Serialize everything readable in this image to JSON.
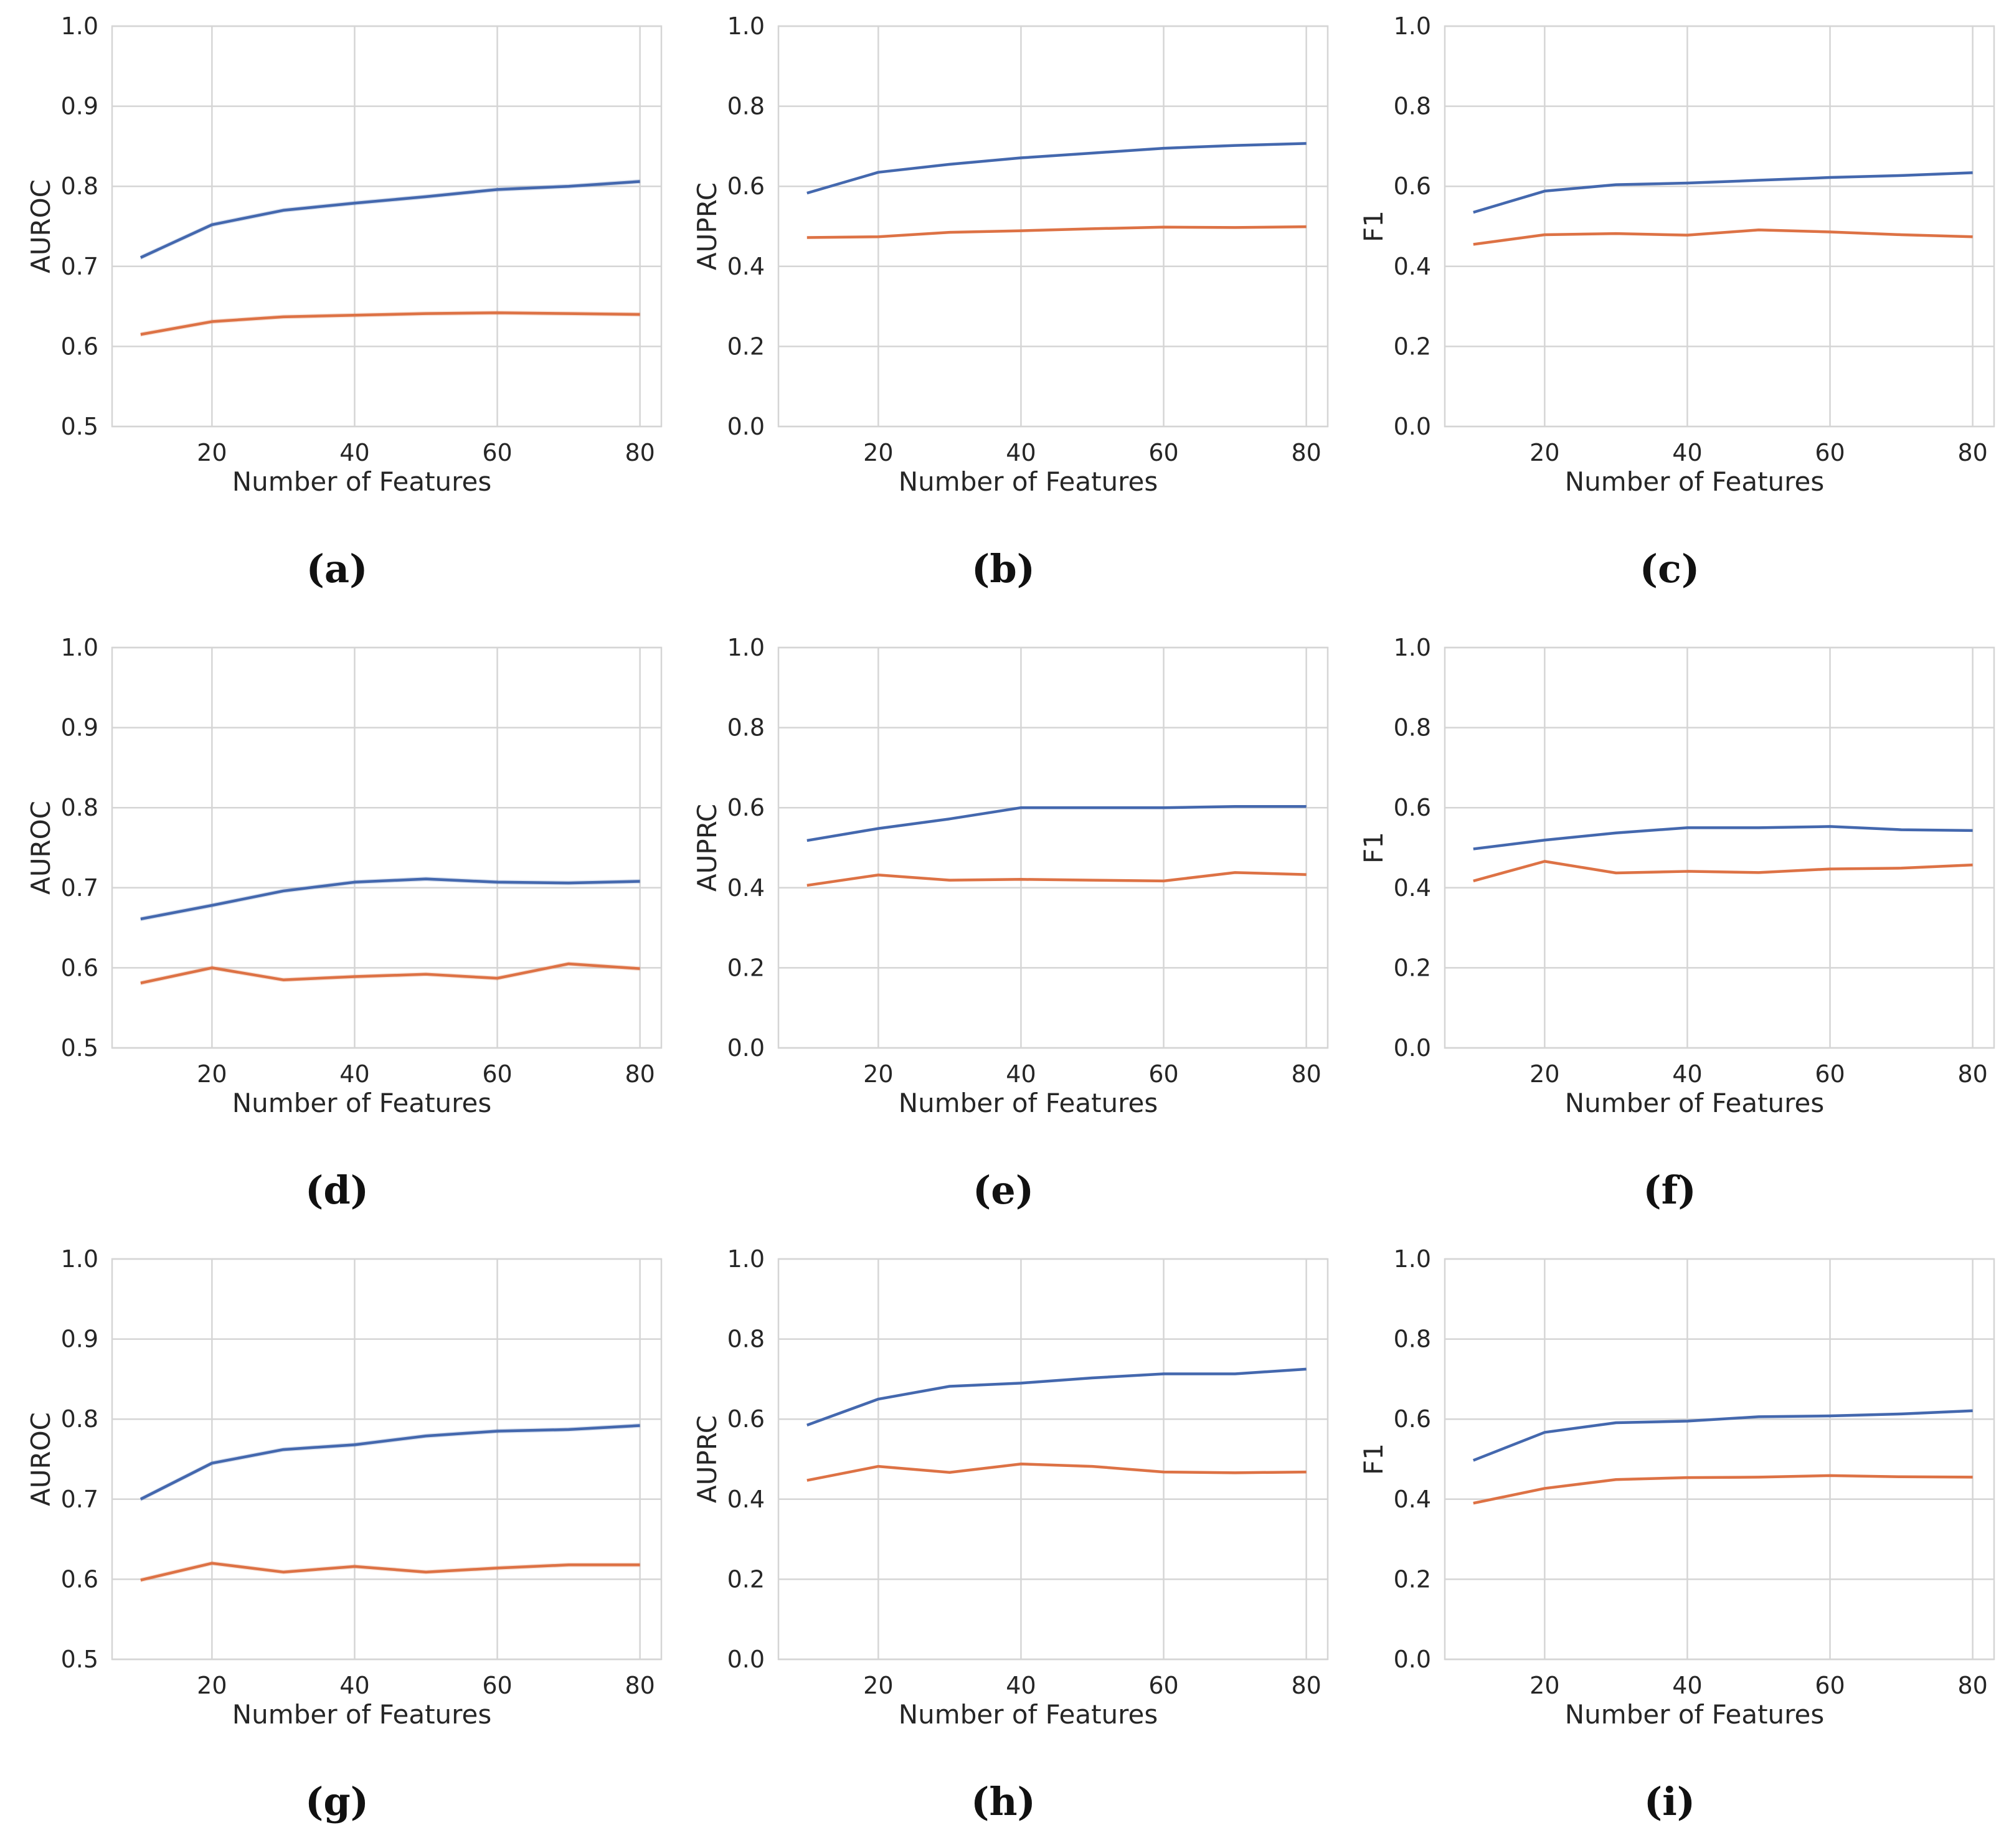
{
  "colors": {
    "series_a": "#4468AE",
    "series_b": "#DD7245",
    "grid": "#D5D5D5",
    "axis_text": "#262626"
  },
  "chart_data": [
    {
      "panel_label": "(a)",
      "type": "line",
      "xlabel": "Number of Features",
      "ylabel": "AUROC",
      "xticks": [
        20,
        40,
        60,
        80
      ],
      "xlim": [
        6,
        83
      ],
      "ylim": [
        0.5,
        1.0
      ],
      "yticks": [
        "0.5",
        "0.6",
        "0.7",
        "0.8",
        "0.9",
        "1.0"
      ],
      "ytick_values": [
        0.5,
        0.6,
        0.7,
        0.8,
        0.9,
        1.0
      ],
      "x": [
        10,
        20,
        30,
        40,
        50,
        60,
        70,
        80
      ],
      "series": [
        {
          "name": "series_a",
          "values": [
            0.711,
            0.752,
            0.77,
            0.779,
            0.787,
            0.796,
            0.8,
            0.806
          ]
        },
        {
          "name": "series_b",
          "values": [
            0.615,
            0.631,
            0.637,
            0.639,
            0.641,
            0.642,
            0.641,
            0.64
          ]
        }
      ]
    },
    {
      "panel_label": "(b)",
      "type": "line",
      "xlabel": "Number of Features",
      "ylabel": "AUPRC",
      "xticks": [
        20,
        40,
        60,
        80
      ],
      "xlim": [
        6,
        83
      ],
      "ylim": [
        0.0,
        1.0
      ],
      "yticks": [
        "0.0",
        "0.2",
        "0.4",
        "0.6",
        "0.8",
        "1.0"
      ],
      "ytick_values": [
        0.0,
        0.2,
        0.4,
        0.6,
        0.8,
        1.0
      ],
      "x": [
        10,
        20,
        30,
        40,
        50,
        60,
        70,
        80
      ],
      "series": [
        {
          "name": "series_a",
          "values": [
            0.583,
            0.635,
            0.655,
            0.671,
            0.683,
            0.695,
            0.702,
            0.707
          ]
        },
        {
          "name": "series_b",
          "values": [
            0.472,
            0.474,
            0.485,
            0.489,
            0.494,
            0.498,
            0.497,
            0.499
          ]
        }
      ]
    },
    {
      "panel_label": "(c)",
      "type": "line",
      "xlabel": "Number of Features",
      "ylabel": "F1",
      "xticks": [
        20,
        40,
        60,
        80
      ],
      "xlim": [
        6,
        83
      ],
      "ylim": [
        0.0,
        1.0
      ],
      "yticks": [
        "0.0",
        "0.2",
        "0.4",
        "0.6",
        "0.8",
        "1.0"
      ],
      "ytick_values": [
        0.0,
        0.2,
        0.4,
        0.6,
        0.8,
        1.0
      ],
      "x": [
        10,
        20,
        30,
        40,
        50,
        60,
        70,
        80
      ],
      "series": [
        {
          "name": "series_a",
          "values": [
            0.535,
            0.588,
            0.604,
            0.608,
            0.615,
            0.622,
            0.627,
            0.634
          ]
        },
        {
          "name": "series_b",
          "values": [
            0.455,
            0.479,
            0.482,
            0.478,
            0.491,
            0.486,
            0.479,
            0.474
          ]
        }
      ]
    },
    {
      "panel_label": "(d)",
      "type": "line",
      "xlabel": "Number of Features",
      "ylabel": "AUROC",
      "xticks": [
        20,
        40,
        60,
        80
      ],
      "xlim": [
        6,
        83
      ],
      "ylim": [
        0.5,
        1.0
      ],
      "yticks": [
        "0.5",
        "0.6",
        "0.7",
        "0.8",
        "0.9",
        "1.0"
      ],
      "ytick_values": [
        0.5,
        0.6,
        0.7,
        0.8,
        0.9,
        1.0
      ],
      "x": [
        10,
        20,
        30,
        40,
        50,
        60,
        70,
        80
      ],
      "series": [
        {
          "name": "series_a",
          "values": [
            0.661,
            0.678,
            0.696,
            0.707,
            0.711,
            0.707,
            0.706,
            0.708
          ]
        },
        {
          "name": "series_b",
          "values": [
            0.581,
            0.6,
            0.585,
            0.589,
            0.592,
            0.587,
            0.605,
            0.599
          ]
        }
      ]
    },
    {
      "panel_label": "(e)",
      "type": "line",
      "xlabel": "Number of Features",
      "ylabel": "AUPRC",
      "xticks": [
        20,
        40,
        60,
        80
      ],
      "xlim": [
        6,
        83
      ],
      "ylim": [
        0.0,
        1.0
      ],
      "yticks": [
        "0.0",
        "0.2",
        "0.4",
        "0.6",
        "0.8",
        "1.0"
      ],
      "ytick_values": [
        0.0,
        0.2,
        0.4,
        0.6,
        0.8,
        1.0
      ],
      "x": [
        10,
        20,
        30,
        40,
        50,
        60,
        70,
        80
      ],
      "series": [
        {
          "name": "series_a",
          "values": [
            0.518,
            0.548,
            0.572,
            0.6,
            0.6,
            0.6,
            0.603,
            0.603
          ]
        },
        {
          "name": "series_b",
          "values": [
            0.406,
            0.432,
            0.419,
            0.421,
            0.419,
            0.417,
            0.438,
            0.433
          ]
        }
      ]
    },
    {
      "panel_label": "(f)",
      "type": "line",
      "xlabel": "Number of Features",
      "ylabel": "F1",
      "xticks": [
        20,
        40,
        60,
        80
      ],
      "xlim": [
        6,
        83
      ],
      "ylim": [
        0.0,
        1.0
      ],
      "yticks": [
        "0.0",
        "0.2",
        "0.4",
        "0.6",
        "0.8",
        "1.0"
      ],
      "ytick_values": [
        0.0,
        0.2,
        0.4,
        0.6,
        0.8,
        1.0
      ],
      "x": [
        10,
        20,
        30,
        40,
        50,
        60,
        70,
        80
      ],
      "series": [
        {
          "name": "series_a",
          "values": [
            0.497,
            0.519,
            0.537,
            0.55,
            0.55,
            0.553,
            0.545,
            0.543
          ]
        },
        {
          "name": "series_b",
          "values": [
            0.417,
            0.466,
            0.437,
            0.441,
            0.438,
            0.447,
            0.449,
            0.457
          ]
        }
      ]
    },
    {
      "panel_label": "(g)",
      "type": "line",
      "xlabel": "Number of Features",
      "ylabel": "AUROC",
      "xticks": [
        20,
        40,
        60,
        80
      ],
      "xlim": [
        6,
        83
      ],
      "ylim": [
        0.5,
        1.0
      ],
      "yticks": [
        "0.5",
        "0.6",
        "0.7",
        "0.8",
        "0.9",
        "1.0"
      ],
      "ytick_values": [
        0.5,
        0.6,
        0.7,
        0.8,
        0.9,
        1.0
      ],
      "x": [
        10,
        20,
        30,
        40,
        50,
        60,
        70,
        80
      ],
      "series": [
        {
          "name": "series_a",
          "values": [
            0.7,
            0.745,
            0.762,
            0.768,
            0.779,
            0.785,
            0.787,
            0.792
          ]
        },
        {
          "name": "series_b",
          "values": [
            0.599,
            0.62,
            0.609,
            0.616,
            0.609,
            0.614,
            0.618,
            0.618
          ]
        }
      ]
    },
    {
      "panel_label": "(h)",
      "type": "line",
      "xlabel": "Number of Features",
      "ylabel": "AUPRC",
      "xticks": [
        20,
        40,
        60,
        80
      ],
      "xlim": [
        6,
        83
      ],
      "ylim": [
        0.0,
        1.0
      ],
      "yticks": [
        "0.0",
        "0.2",
        "0.4",
        "0.6",
        "0.8",
        "1.0"
      ],
      "ytick_values": [
        0.0,
        0.2,
        0.4,
        0.6,
        0.8,
        1.0
      ],
      "x": [
        10,
        20,
        30,
        40,
        50,
        60,
        70,
        80
      ],
      "series": [
        {
          "name": "series_a",
          "values": [
            0.585,
            0.65,
            0.682,
            0.69,
            0.703,
            0.713,
            0.713,
            0.725
          ]
        },
        {
          "name": "series_b",
          "values": [
            0.447,
            0.482,
            0.467,
            0.488,
            0.482,
            0.468,
            0.466,
            0.468
          ]
        }
      ]
    },
    {
      "panel_label": "(i)",
      "type": "line",
      "xlabel": "Number of Features",
      "ylabel": "F1",
      "xticks": [
        20,
        40,
        60,
        80
      ],
      "xlim": [
        6,
        83
      ],
      "ylim": [
        0.0,
        1.0
      ],
      "yticks": [
        "0.0",
        "0.2",
        "0.4",
        "0.6",
        "0.8",
        "1.0"
      ],
      "ytick_values": [
        0.0,
        0.2,
        0.4,
        0.6,
        0.8,
        1.0
      ],
      "x": [
        10,
        20,
        30,
        40,
        50,
        60,
        70,
        80
      ],
      "series": [
        {
          "name": "series_a",
          "values": [
            0.497,
            0.567,
            0.591,
            0.595,
            0.606,
            0.608,
            0.613,
            0.621
          ]
        },
        {
          "name": "series_b",
          "values": [
            0.39,
            0.427,
            0.449,
            0.454,
            0.455,
            0.459,
            0.456,
            0.455
          ]
        }
      ]
    }
  ]
}
